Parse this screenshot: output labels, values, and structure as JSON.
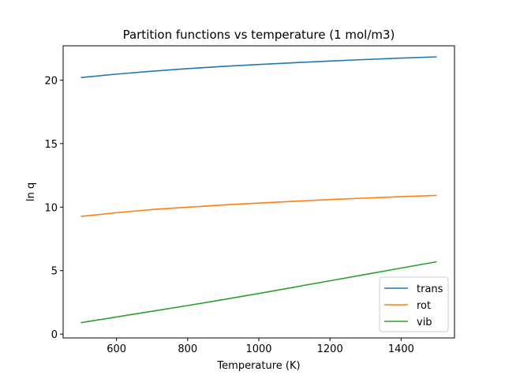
{
  "chart_data": {
    "type": "line",
    "title": "Partition functions vs temperature (1 mol/m3)",
    "xlabel": "Temperature (K)",
    "ylabel": "ln q",
    "xlim": [
      450,
      1550
    ],
    "ylim": [
      -0.3,
      22.7
    ],
    "x_ticks": [
      600,
      800,
      1000,
      1200,
      1400
    ],
    "y_ticks": [
      0,
      5,
      10,
      15,
      20
    ],
    "grid": false,
    "legend_position": "lower-right",
    "x": [
      500,
      600,
      700,
      800,
      900,
      1000,
      1100,
      1200,
      1300,
      1400,
      1500
    ],
    "series": [
      {
        "name": "trans",
        "color": "#1f77b4",
        "values": [
          20.2,
          20.47,
          20.7,
          20.9,
          21.08,
          21.23,
          21.37,
          21.5,
          21.62,
          21.73,
          21.83
        ]
      },
      {
        "name": "rot",
        "color": "#ff7f0e",
        "values": [
          9.27,
          9.56,
          9.81,
          9.99,
          10.17,
          10.32,
          10.46,
          10.6,
          10.71,
          10.82,
          10.92
        ]
      },
      {
        "name": "vib",
        "color": "#2ca02c",
        "values": [
          0.9,
          1.35,
          1.8,
          2.25,
          2.72,
          3.2,
          3.7,
          4.2,
          4.7,
          5.2,
          5.7
        ]
      }
    ]
  }
}
